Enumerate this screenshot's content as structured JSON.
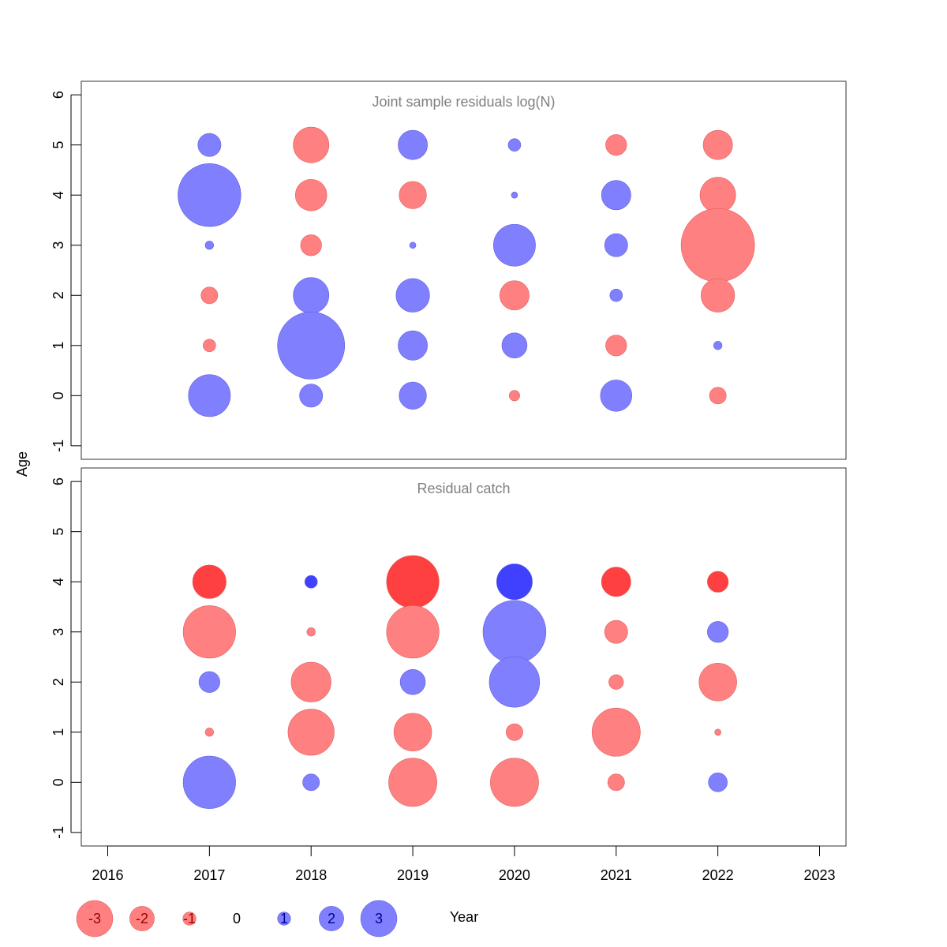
{
  "chart_data": [
    {
      "type": "bubble",
      "title": "Joint sample residuals log(N)",
      "xlabel": "Year",
      "ylabel": "Age",
      "xlim": [
        2016,
        2023
      ],
      "ylim": [
        -1,
        6
      ],
      "x_ticks": [
        2016,
        2017,
        2018,
        2019,
        2020,
        2021,
        2022,
        2023
      ],
      "y_ticks": [
        -1,
        0,
        1,
        2,
        3,
        4,
        5,
        6
      ],
      "points": [
        {
          "year": 2017,
          "age": 5,
          "residual": 1.1
        },
        {
          "year": 2017,
          "age": 4,
          "residual": 3.0
        },
        {
          "year": 2017,
          "age": 3,
          "residual": 0.4
        },
        {
          "year": 2017,
          "age": 2,
          "residual": -0.8
        },
        {
          "year": 2017,
          "age": 1,
          "residual": -0.6
        },
        {
          "year": 2017,
          "age": 0,
          "residual": 2.0
        },
        {
          "year": 2018,
          "age": 5,
          "residual": -1.7
        },
        {
          "year": 2018,
          "age": 4,
          "residual": -1.5
        },
        {
          "year": 2018,
          "age": 3,
          "residual": -1.0
        },
        {
          "year": 2018,
          "age": 2,
          "residual": 1.7
        },
        {
          "year": 2018,
          "age": 1,
          "residual": 3.2
        },
        {
          "year": 2018,
          "age": 0,
          "residual": 1.1
        },
        {
          "year": 2019,
          "age": 5,
          "residual": 1.4
        },
        {
          "year": 2019,
          "age": 4,
          "residual": -1.3
        },
        {
          "year": 2019,
          "age": 3,
          "residual": 0.3
        },
        {
          "year": 2019,
          "age": 2,
          "residual": 1.6
        },
        {
          "year": 2019,
          "age": 1,
          "residual": 1.4
        },
        {
          "year": 2019,
          "age": 0,
          "residual": 1.3
        },
        {
          "year": 2020,
          "age": 5,
          "residual": 0.6
        },
        {
          "year": 2020,
          "age": 4,
          "residual": 0.3
        },
        {
          "year": 2020,
          "age": 3,
          "residual": 2.0
        },
        {
          "year": 2020,
          "age": 2,
          "residual": -1.4
        },
        {
          "year": 2020,
          "age": 1,
          "residual": 1.2
        },
        {
          "year": 2020,
          "age": 0,
          "residual": -0.5
        },
        {
          "year": 2021,
          "age": 5,
          "residual": -1.0
        },
        {
          "year": 2021,
          "age": 4,
          "residual": 1.4
        },
        {
          "year": 2021,
          "age": 3,
          "residual": 1.1
        },
        {
          "year": 2021,
          "age": 2,
          "residual": 0.6
        },
        {
          "year": 2021,
          "age": 1,
          "residual": -1.0
        },
        {
          "year": 2021,
          "age": 0,
          "residual": 1.5
        },
        {
          "year": 2022,
          "age": 5,
          "residual": -1.4
        },
        {
          "year": 2022,
          "age": 4,
          "residual": -1.7
        },
        {
          "year": 2022,
          "age": 3,
          "residual": -3.5
        },
        {
          "year": 2022,
          "age": 2,
          "residual": -1.6
        },
        {
          "year": 2022,
          "age": 1,
          "residual": 0.4
        },
        {
          "year": 2022,
          "age": 0,
          "residual": -0.8
        }
      ]
    },
    {
      "type": "bubble",
      "title": "Residual catch",
      "xlabel": "Year",
      "ylabel": "Age",
      "xlim": [
        2016,
        2023
      ],
      "ylim": [
        -1,
        6
      ],
      "x_ticks": [
        2016,
        2017,
        2018,
        2019,
        2020,
        2021,
        2022,
        2023
      ],
      "y_ticks": [
        -1,
        0,
        1,
        2,
        3,
        4,
        5,
        6
      ],
      "points": [
        {
          "year": 2017,
          "age": 4,
          "residual": -1.6,
          "highlight": true
        },
        {
          "year": 2017,
          "age": 3,
          "residual": -2.5
        },
        {
          "year": 2017,
          "age": 2,
          "residual": 1.0
        },
        {
          "year": 2017,
          "age": 1,
          "residual": -0.4
        },
        {
          "year": 2017,
          "age": 0,
          "residual": 2.5
        },
        {
          "year": 2018,
          "age": 4,
          "residual": 0.6,
          "highlight": true
        },
        {
          "year": 2018,
          "age": 3,
          "residual": -0.4
        },
        {
          "year": 2018,
          "age": 2,
          "residual": -1.9
        },
        {
          "year": 2018,
          "age": 1,
          "residual": -2.2
        },
        {
          "year": 2018,
          "age": 0,
          "residual": 0.8
        },
        {
          "year": 2019,
          "age": 4,
          "residual": -2.5,
          "highlight": true
        },
        {
          "year": 2019,
          "age": 3,
          "residual": -2.5
        },
        {
          "year": 2019,
          "age": 2,
          "residual": 1.2
        },
        {
          "year": 2019,
          "age": 1,
          "residual": -1.8
        },
        {
          "year": 2019,
          "age": 0,
          "residual": -2.3
        },
        {
          "year": 2020,
          "age": 4,
          "residual": 1.7,
          "highlight": true
        },
        {
          "year": 2020,
          "age": 3,
          "residual": 3.0
        },
        {
          "year": 2020,
          "age": 2,
          "residual": 2.4
        },
        {
          "year": 2020,
          "age": 1,
          "residual": -0.8
        },
        {
          "year": 2020,
          "age": 0,
          "residual": -2.3
        },
        {
          "year": 2021,
          "age": 4,
          "residual": -1.4,
          "highlight": true
        },
        {
          "year": 2021,
          "age": 3,
          "residual": -1.1
        },
        {
          "year": 2021,
          "age": 2,
          "residual": -0.7
        },
        {
          "year": 2021,
          "age": 1,
          "residual": -2.3
        },
        {
          "year": 2021,
          "age": 0,
          "residual": -0.8
        },
        {
          "year": 2022,
          "age": 4,
          "residual": -1.0,
          "highlight": true
        },
        {
          "year": 2022,
          "age": 3,
          "residual": 1.0
        },
        {
          "year": 2022,
          "age": 2,
          "residual": -1.8
        },
        {
          "year": 2022,
          "age": 1,
          "residual": -0.3
        },
        {
          "year": 2022,
          "age": 0,
          "residual": 0.9
        }
      ]
    }
  ],
  "legend": {
    "items": [
      {
        "label": "-3",
        "value": -3
      },
      {
        "label": "-2",
        "value": -2
      },
      {
        "label": "-1",
        "value": -1
      },
      {
        "label": "0",
        "value": 0
      },
      {
        "label": "1",
        "value": 1
      },
      {
        "label": "2",
        "value": 2
      },
      {
        "label": "3",
        "value": 3
      }
    ]
  },
  "colors": {
    "negative": "#ff8080",
    "positive": "#8080ff",
    "negative_highlight": "#ff4040",
    "positive_highlight": "#4040ff",
    "negative_stroke": "#e06060",
    "positive_stroke": "#6060e0",
    "negative_label": "#990000",
    "positive_label": "#000099",
    "title": "#808080",
    "axis": "#000000",
    "frame": "#333333"
  }
}
